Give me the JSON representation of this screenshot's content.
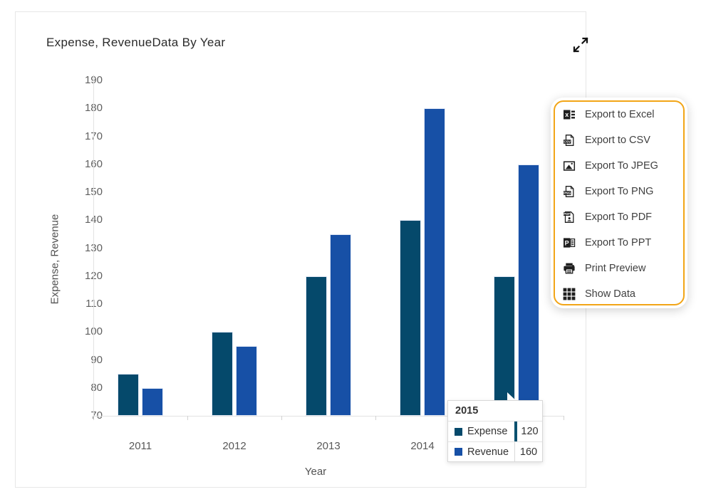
{
  "card": {
    "title": "Expense, RevenueData By Year"
  },
  "chart_data": {
    "type": "bar",
    "title": "Expense, RevenueData By Year",
    "categories": [
      "2011",
      "2012",
      "2013",
      "2014",
      "2015"
    ],
    "series": [
      {
        "name": "Expense",
        "color": "#05496b",
        "values": [
          85,
          100,
          120,
          140,
          120
        ]
      },
      {
        "name": "Revenue",
        "color": "#1750a6",
        "values": [
          80,
          95,
          135,
          180,
          160
        ]
      }
    ],
    "xlabel": "Year",
    "ylabel": "Expense, Revenue",
    "ylim": [
      70,
      190
    ],
    "yticks": [
      70,
      80,
      90,
      100,
      110,
      120,
      130,
      140,
      150,
      160,
      170,
      180,
      190
    ],
    "grid": false,
    "legend_position": "none"
  },
  "context_menu": {
    "border_color": "#f2a517",
    "items": [
      {
        "label": "Export to Excel",
        "icon": "excel-icon"
      },
      {
        "label": "Export to CSV",
        "icon": "csv-icon"
      },
      {
        "label": "Export To JPEG",
        "icon": "jpeg-icon"
      },
      {
        "label": "Export To PNG",
        "icon": "png-icon"
      },
      {
        "label": "Export To PDF",
        "icon": "pdf-icon"
      },
      {
        "label": "Export To PPT",
        "icon": "ppt-icon"
      },
      {
        "label": "Print Preview",
        "icon": "printer-icon"
      },
      {
        "label": "Show Data",
        "icon": "grid-icon"
      }
    ]
  },
  "tooltip": {
    "header": "2015",
    "rows": [
      {
        "label": "Expense",
        "value": "120",
        "color": "#05496b",
        "highlighted": true
      },
      {
        "label": "Revenue",
        "value": "160",
        "color": "#1750a6",
        "highlighted": false
      }
    ]
  }
}
